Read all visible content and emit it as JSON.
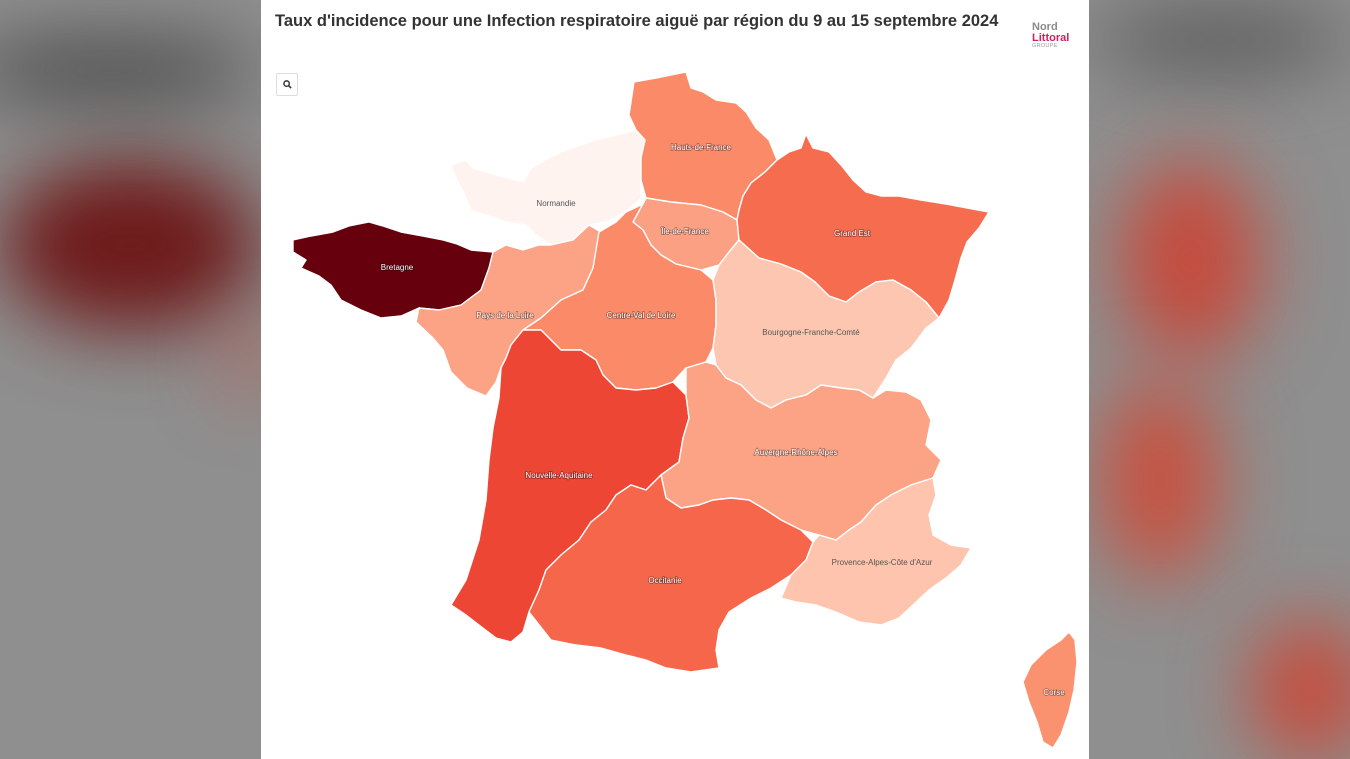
{
  "title": "Taux d'incidence pour une Infection respiratoire aiguë par région du 9 au 15 septembre 2024",
  "logo": {
    "line1": "Nord",
    "line2": "Littoral",
    "line3": "GROUPE",
    "accent_color": "#d51e5a"
  },
  "zoom_button": {
    "icon": "search-icon"
  },
  "regions": {
    "hauts_de_france": {
      "label": "Hauts-de-France",
      "color": "#fa8a68"
    },
    "normandie": {
      "label": "Normandie",
      "color": "#fff3ef"
    },
    "ile_de_france": {
      "label": "Île-de-France",
      "color": "#fca083"
    },
    "grand_est": {
      "label": "Grand Est",
      "color": "#f66c4f"
    },
    "bretagne": {
      "label": "Bretagne",
      "color": "#67000d"
    },
    "pays_de_la_loire": {
      "label": "Pays de la Loire",
      "color": "#fca285"
    },
    "centre_val_de_loire": {
      "label": "Centre-Val de Loire",
      "color": "#fa8a68"
    },
    "bourgogne_franche_comte": {
      "label": "Bourgogne-Franche-Comté",
      "color": "#fdc6b0"
    },
    "nouvelle_aquitaine": {
      "label": "Nouvelle-Aquitaine",
      "color": "#ed4634"
    },
    "auvergne_rhone_alpes": {
      "label": "Auvergne-Rhône-Alpes",
      "color": "#fca386"
    },
    "occitanie": {
      "label": "Occitanie",
      "color": "#f6664a"
    },
    "paca": {
      "label": "Provence-Alpes-Côte d'Azur",
      "color": "#fec4ad"
    },
    "corse": {
      "label": "Corse",
      "color": "#fb926f"
    }
  }
}
